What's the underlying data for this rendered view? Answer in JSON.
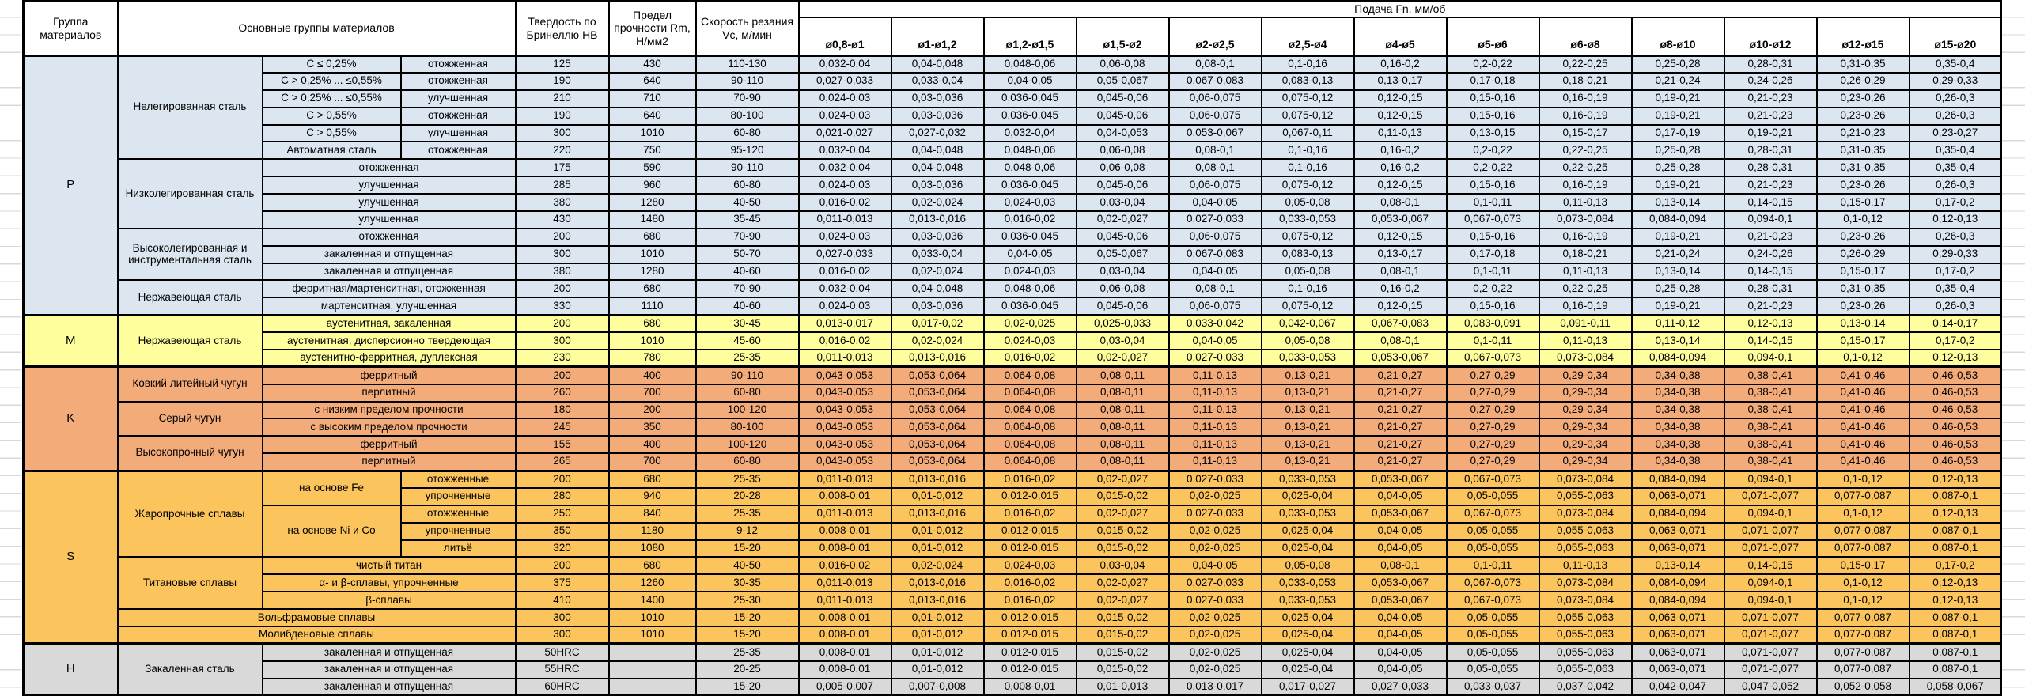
{
  "header": {
    "col_group": "Группа материалов",
    "col_main": "Основные группы материалов",
    "col_hardness": "Твердость по Бринеллю HB",
    "col_strength": "Предел прочности Rm, Н/мм2",
    "col_speed": "Скорость резания Vc, м/мин",
    "feed_title": "Подача Fn, мм/об",
    "feed_cols": [
      "ø0,8-ø1",
      "ø1-ø1,2",
      "ø1,2-ø1,5",
      "ø1,5-ø2",
      "ø2-ø2,5",
      "ø2,5-ø4",
      "ø4-ø5",
      "ø5-ø6",
      "ø6-ø8",
      "ø8-ø10",
      "ø10-ø12",
      "ø12-ø15",
      "ø15-ø20"
    ]
  },
  "colors": {
    "group_p": "#dce6f1",
    "group_m": "#feff9c",
    "group_k": "#f3ab79",
    "group_s": "#fcc45c",
    "group_h": "#d9d9d9",
    "border": "#000000",
    "gutter_line": "#d9d9d9"
  },
  "feeds": {
    "f1": [
      "0,032-0,04",
      "0,04-0,048",
      "0,048-0,06",
      "0,06-0,08",
      "0,08-0,1",
      "0,1-0,16",
      "0,16-0,2",
      "0,2-0,22",
      "0,22-0,25",
      "0,25-0,28",
      "0,28-0,31",
      "0,31-0,35",
      "0,35-0,4"
    ],
    "f2": [
      "0,027-0,033",
      "0,033-0,04",
      "0,04-0,05",
      "0,05-0,067",
      "0,067-0,083",
      "0,083-0,13",
      "0,13-0,17",
      "0,17-0,18",
      "0,18-0,21",
      "0,21-0,24",
      "0,24-0,26",
      "0,26-0,29",
      "0,29-0,33"
    ],
    "f3": [
      "0,024-0,03",
      "0,03-0,036",
      "0,036-0,045",
      "0,045-0,06",
      "0,06-0,075",
      "0,075-0,12",
      "0,12-0,15",
      "0,15-0,16",
      "0,16-0,19",
      "0,19-0,21",
      "0,21-0,23",
      "0,23-0,26",
      "0,26-0,3"
    ],
    "f5": [
      "0,021-0,027",
      "0,027-0,032",
      "0,032-0,04",
      "0,04-0,053",
      "0,053-0,067",
      "0,067-0,11",
      "0,11-0,13",
      "0,13-0,15",
      "0,15-0,17",
      "0,17-0,19",
      "0,19-0,21",
      "0,21-0,23",
      "0,23-0,27"
    ],
    "f9": [
      "0,016-0,02",
      "0,02-0,024",
      "0,024-0,03",
      "0,03-0,04",
      "0,04-0,05",
      "0,05-0,08",
      "0,08-0,1",
      "0,1-0,11",
      "0,11-0,13",
      "0,13-0,14",
      "0,14-0,15",
      "0,15-0,17",
      "0,17-0,2"
    ],
    "f10": [
      "0,011-0,013",
      "0,013-0,016",
      "0,016-0,02",
      "0,02-0,027",
      "0,027-0,033",
      "0,033-0,053",
      "0,053-0,067",
      "0,067-0,073",
      "0,073-0,084",
      "0,084-0,094",
      "0,094-0,1",
      "0,1-0,12",
      "0,12-0,13"
    ],
    "fm": [
      "0,013-0,017",
      "0,017-0,02",
      "0,02-0,025",
      "0,025-0,033",
      "0,033-0,042",
      "0,042-0,067",
      "0,067-0,083",
      "0,083-0,091",
      "0,091-0,11",
      "0,11-0,12",
      "0,12-0,13",
      "0,13-0,14",
      "0,14-0,17"
    ],
    "fk": [
      "0,043-0,053",
      "0,053-0,064",
      "0,064-0,08",
      "0,08-0,11",
      "0,11-0,13",
      "0,13-0,21",
      "0,21-0,27",
      "0,27-0,29",
      "0,29-0,34",
      "0,34-0,38",
      "0,38-0,41",
      "0,41-0,46",
      "0,46-0,53"
    ],
    "fb": [
      "0,008-0,01",
      "0,01-0,012",
      "0,012-0,015",
      "0,015-0,02",
      "0,02-0,025",
      "0,025-0,04",
      "0,04-0,05",
      "0,05-0,055",
      "0,055-0,063",
      "0,063-0,071",
      "0,071-0,077",
      "0,077-0,087",
      "0,087-0,1"
    ],
    "fc": [
      "0,005-0,007",
      "0,007-0,008",
      "0,008-0,01",
      "0,01-0,013",
      "0,013-0,017",
      "0,017-0,027",
      "0,027-0,033",
      "0,033-0,037",
      "0,037-0,042",
      "0,042-0,047",
      "0,047-0,052",
      "0,052-0,058",
      "0,058-0,067"
    ]
  },
  "rows": [
    {
      "g": "p",
      "gs": true,
      "lead": [
        {
          "t": "P",
          "rs": 15,
          "letter": true
        },
        {
          "t": "Нелегированная сталь",
          "rs": 6
        },
        {
          "t": "C ≤ 0,25%"
        },
        {
          "t": "отожженная"
        }
      ],
      "hb": "125",
      "rm": "430",
      "vc": "110-130",
      "feed": "f1"
    },
    {
      "g": "p",
      "lead": [
        {
          "t": "C > 0,25% ... ≤0,55%"
        },
        {
          "t": "отожженная"
        }
      ],
      "hb": "190",
      "rm": "640",
      "vc": "90-110",
      "feed": "f2"
    },
    {
      "g": "p",
      "lead": [
        {
          "t": "C > 0,25% ... ≤0,55%"
        },
        {
          "t": "улучшенная"
        }
      ],
      "hb": "210",
      "rm": "710",
      "vc": "70-90",
      "feed": "f3"
    },
    {
      "g": "p",
      "lead": [
        {
          "t": "C > 0,55%"
        },
        {
          "t": "отожженная"
        }
      ],
      "hb": "190",
      "rm": "640",
      "vc": "80-100",
      "feed": "f3"
    },
    {
      "g": "p",
      "lead": [
        {
          "t": "C > 0,55%"
        },
        {
          "t": "улучшенная"
        }
      ],
      "hb": "300",
      "rm": "1010",
      "vc": "60-80",
      "feed": "f5"
    },
    {
      "g": "p",
      "lead": [
        {
          "t": "Автоматная сталь"
        },
        {
          "t": "отожженная"
        }
      ],
      "hb": "220",
      "rm": "750",
      "vc": "95-120",
      "feed": "f1"
    },
    {
      "g": "p",
      "lead": [
        {
          "t": "Низколегированная сталь",
          "rs": 4
        },
        {
          "t": "отожженная",
          "cs": 2
        }
      ],
      "hb": "175",
      "rm": "590",
      "vc": "90-110",
      "feed": "f1"
    },
    {
      "g": "p",
      "lead": [
        {
          "t": "улучшенная",
          "cs": 2
        }
      ],
      "hb": "285",
      "rm": "960",
      "vc": "60-80",
      "feed": "f3"
    },
    {
      "g": "p",
      "lead": [
        {
          "t": "улучшенная",
          "cs": 2
        }
      ],
      "hb": "380",
      "rm": "1280",
      "vc": "40-50",
      "feed": "f9"
    },
    {
      "g": "p",
      "lead": [
        {
          "t": "улучшенная",
          "cs": 2
        }
      ],
      "hb": "430",
      "rm": "1480",
      "vc": "35-45",
      "feed": "f10"
    },
    {
      "g": "p",
      "lead": [
        {
          "t": "Высоколегированная и инструментальная сталь",
          "rs": 3
        },
        {
          "t": "отожженная",
          "cs": 2
        }
      ],
      "hb": "200",
      "rm": "680",
      "vc": "70-90",
      "feed": "f3"
    },
    {
      "g": "p",
      "lead": [
        {
          "t": "закаленная и отпущенная",
          "cs": 2
        }
      ],
      "hb": "300",
      "rm": "1010",
      "vc": "50-70",
      "feed": "f2"
    },
    {
      "g": "p",
      "lead": [
        {
          "t": "закаленная и отпущенная",
          "cs": 2
        }
      ],
      "hb": "380",
      "rm": "1280",
      "vc": "40-60",
      "feed": "f9"
    },
    {
      "g": "p",
      "lead": [
        {
          "t": "Нержавеющая сталь",
          "rs": 2
        },
        {
          "t": "ферритная/мартенситная, отожженная",
          "cs": 2
        }
      ],
      "hb": "200",
      "rm": "680",
      "vc": "70-90",
      "feed": "f1"
    },
    {
      "g": "p",
      "lead": [
        {
          "t": "мартенситная, улучшенная",
          "cs": 2
        }
      ],
      "hb": "330",
      "rm": "1110",
      "vc": "40-60",
      "feed": "f3"
    },
    {
      "g": "m",
      "gs": true,
      "lead": [
        {
          "t": "M",
          "rs": 3,
          "letter": true
        },
        {
          "t": "Нержавеющая сталь",
          "rs": 3
        },
        {
          "t": "аустенитная, закаленная",
          "cs": 2
        }
      ],
      "hb": "200",
      "rm": "680",
      "vc": "30-45",
      "feed": "fm"
    },
    {
      "g": "m",
      "lead": [
        {
          "t": "аустенитная, дисперсионно твердеющая",
          "cs": 2
        }
      ],
      "hb": "300",
      "rm": "1010",
      "vc": "45-60",
      "feed": "f9"
    },
    {
      "g": "m",
      "lead": [
        {
          "t": "аустенитно-ферритная, дуплексная",
          "cs": 2
        }
      ],
      "hb": "230",
      "rm": "780",
      "vc": "25-35",
      "feed": "f10"
    },
    {
      "g": "k",
      "gs": true,
      "lead": [
        {
          "t": "K",
          "rs": 6,
          "letter": true
        },
        {
          "t": "Ковкий литейный чугун",
          "rs": 2
        },
        {
          "t": "ферритный",
          "cs": 2
        }
      ],
      "hb": "200",
      "rm": "400",
      "vc": "90-110",
      "feed": "fk"
    },
    {
      "g": "k",
      "lead": [
        {
          "t": "перлитный",
          "cs": 2
        }
      ],
      "hb": "260",
      "rm": "700",
      "vc": "60-80",
      "feed": "fk"
    },
    {
      "g": "k",
      "lead": [
        {
          "t": "Серый чугун",
          "rs": 2
        },
        {
          "t": "с низким пределом прочности",
          "cs": 2
        }
      ],
      "hb": "180",
      "rm": "200",
      "vc": "100-120",
      "feed": "fk"
    },
    {
      "g": "k",
      "lead": [
        {
          "t": "с высоким пределом прочности",
          "cs": 2
        }
      ],
      "hb": "245",
      "rm": "350",
      "vc": "80-100",
      "feed": "fk"
    },
    {
      "g": "k",
      "lead": [
        {
          "t": "Высокопрочный чугун",
          "rs": 2
        },
        {
          "t": "ферритный",
          "cs": 2
        }
      ],
      "hb": "155",
      "rm": "400",
      "vc": "100-120",
      "feed": "fk"
    },
    {
      "g": "k",
      "lead": [
        {
          "t": "перлитный",
          "cs": 2
        }
      ],
      "hb": "265",
      "rm": "700",
      "vc": "60-80",
      "feed": "fk"
    },
    {
      "g": "s",
      "gs": true,
      "lead": [
        {
          "t": "S",
          "rs": 10,
          "letter": true
        },
        {
          "t": "Жаропрочные сплавы",
          "rs": 5
        },
        {
          "t": "на основе Fe",
          "rs": 2
        },
        {
          "t": "отожженные"
        }
      ],
      "hb": "200",
      "rm": "680",
      "vc": "25-35",
      "feed": "f10"
    },
    {
      "g": "s",
      "lead": [
        {
          "t": "упрочненные"
        }
      ],
      "hb": "280",
      "rm": "940",
      "vc": "20-28",
      "feed": "fb"
    },
    {
      "g": "s",
      "lead": [
        {
          "t": "на основе Ni и Co",
          "rs": 3
        },
        {
          "t": "отожженные"
        }
      ],
      "hb": "250",
      "rm": "840",
      "vc": "25-35",
      "feed": "f10"
    },
    {
      "g": "s",
      "lead": [
        {
          "t": "упрочненные"
        }
      ],
      "hb": "350",
      "rm": "1180",
      "vc": "9-12",
      "feed": "fb"
    },
    {
      "g": "s",
      "lead": [
        {
          "t": "литьё"
        }
      ],
      "hb": "320",
      "rm": "1080",
      "vc": "15-20",
      "feed": "fb"
    },
    {
      "g": "s",
      "lead": [
        {
          "t": "Титановые сплавы",
          "rs": 3
        },
        {
          "t": "чистый титан",
          "cs": 2
        }
      ],
      "hb": "200",
      "rm": "680",
      "vc": "40-50",
      "feed": "f9"
    },
    {
      "g": "s",
      "lead": [
        {
          "t": "α- и β-сплавы, упрочненные",
          "cs": 2
        }
      ],
      "hb": "375",
      "rm": "1260",
      "vc": "30-35",
      "feed": "f10"
    },
    {
      "g": "s",
      "lead": [
        {
          "t": "β-сплавы",
          "cs": 2
        }
      ],
      "hb": "410",
      "rm": "1400",
      "vc": "25-30",
      "feed": "f10"
    },
    {
      "g": "s",
      "lead": [
        {
          "t": "Вольфрамовые сплавы",
          "cs": 3
        }
      ],
      "hb": "300",
      "rm": "1010",
      "vc": "15-20",
      "feed": "fb"
    },
    {
      "g": "s",
      "lead": [
        {
          "t": "Молибденовые сплавы",
          "cs": 3
        }
      ],
      "hb": "300",
      "rm": "1010",
      "vc": "15-20",
      "feed": "fb"
    },
    {
      "g": "h",
      "gs": true,
      "lead": [
        {
          "t": "H",
          "rs": 3,
          "letter": true
        },
        {
          "t": "Закаленная сталь",
          "rs": 3
        },
        {
          "t": "закаленная и отпущенная",
          "cs": 2
        }
      ],
      "hb": "50HRC",
      "rm": "",
      "vc": "25-35",
      "feed": "fb"
    },
    {
      "g": "h",
      "lead": [
        {
          "t": "закаленная и отпущенная",
          "cs": 2
        }
      ],
      "hb": "55HRC",
      "rm": "",
      "vc": "20-25",
      "feed": "fb"
    },
    {
      "g": "h",
      "lead": [
        {
          "t": "закаленная и отпущенная",
          "cs": 2
        }
      ],
      "hb": "60HRC",
      "rm": "",
      "vc": "15-20",
      "feed": "fc"
    }
  ]
}
